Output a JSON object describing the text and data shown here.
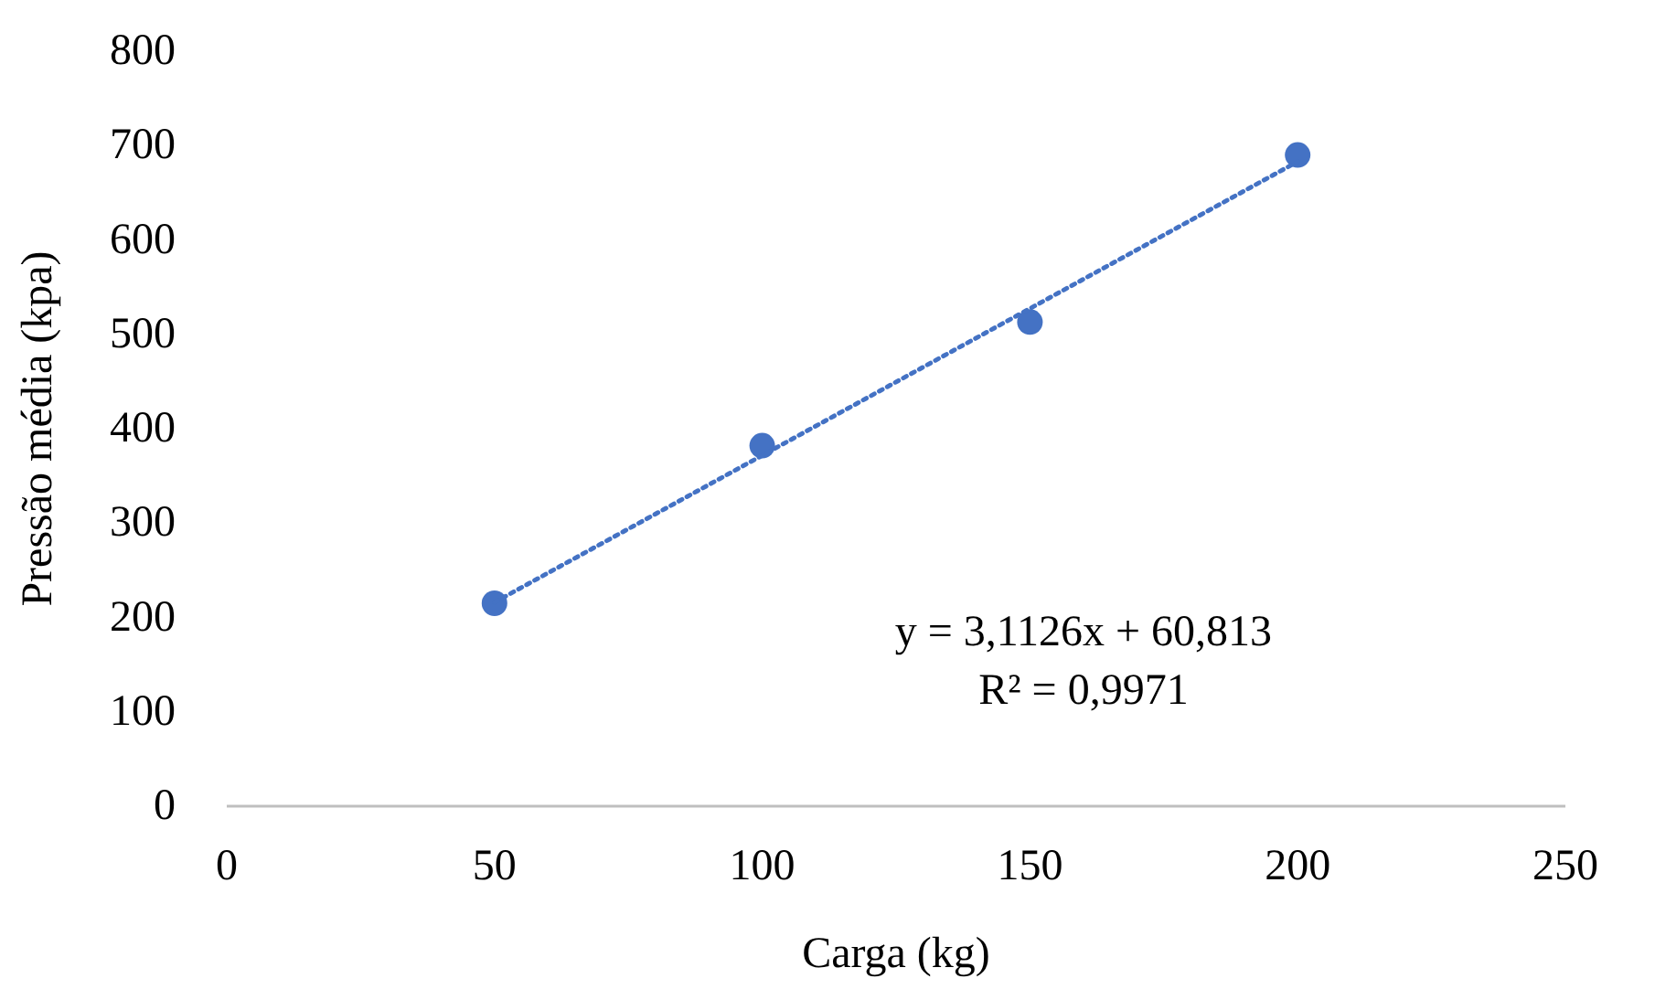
{
  "chart_data": {
    "type": "scatter",
    "xlabel": "Carga (kg)",
    "ylabel": "Pressão média (kpa)",
    "xlim": [
      0,
      250
    ],
    "xticks": [
      0,
      50,
      100,
      150,
      200,
      250
    ],
    "ylim": [
      0,
      800
    ],
    "yticks": [
      0,
      100,
      200,
      300,
      400,
      500,
      600,
      700,
      800
    ],
    "grid": false,
    "marker": "circle",
    "series": [
      {
        "color": "#4472c4",
        "x": [
          50,
          100,
          150,
          200
        ],
        "values": [
          215,
          382,
          513,
          690
        ]
      },
      {
        "type": "line",
        "color": "#4472c4",
        "line_style": "dotted",
        "marker": "none",
        "x": [
          50,
          200
        ],
        "values": [
          216,
          683
        ]
      }
    ],
    "annotations": [
      "y = 3,1126x + 60,813",
      "R² = 0,9971"
    ]
  }
}
